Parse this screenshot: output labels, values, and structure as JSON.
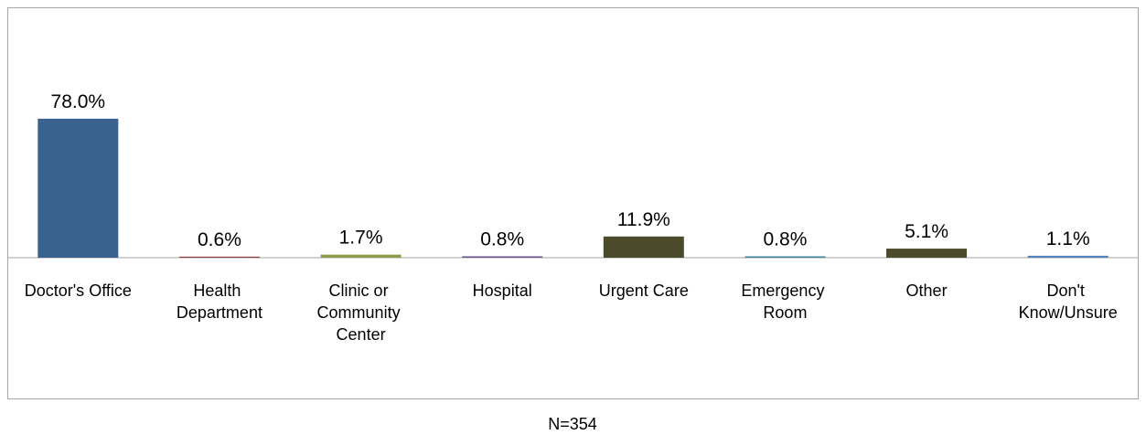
{
  "chart_data": {
    "type": "bar",
    "categories": [
      "Doctor's Office",
      "Health Department",
      "Clinic or Community Center",
      "Hospital",
      "Urgent Care",
      "Emergency Room",
      "Other",
      "Don't Know/Unsure"
    ],
    "values": [
      78.0,
      0.6,
      1.7,
      0.8,
      11.9,
      0.8,
      5.1,
      1.1
    ],
    "value_labels": [
      "78.0%",
      "0.6%",
      "1.7%",
      "0.8%",
      "11.9%",
      "0.8%",
      "5.1%",
      "1.1%"
    ],
    "colors": [
      "#3a6291",
      "#8c3f3d",
      "#8a9b49",
      "#6a5a8a",
      "#4b4a2b",
      "#3f8aa0",
      "#4b4a2b",
      "#4f81bd"
    ],
    "footnote": "N=354"
  }
}
